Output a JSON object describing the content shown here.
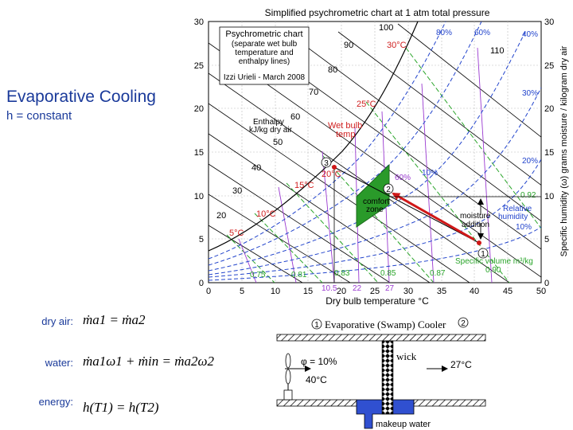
{
  "slide": {
    "title": "Evaporative Cooling",
    "subtitle": "h = constant"
  },
  "chart": {
    "title": "Simplified psychrometric chart at 1 atm total pressure",
    "xlabel": "Dry bulb temperature °C",
    "ylabel": "Specific humidity (ω) grams moisture / kilogram dry air",
    "x_ticks": [
      "0",
      "5",
      "10",
      "15",
      "20",
      "25",
      "30",
      "35",
      "40",
      "45",
      "50"
    ],
    "y_ticks": [
      "0",
      "5",
      "10",
      "15",
      "20",
      "25",
      "30"
    ],
    "legend_lines": [
      "Psychrometric chart",
      "(separate wet bulb",
      "temperature and",
      "enthalpy lines)"
    ],
    "credit": "Izzi Urieli - March 2008",
    "enthalpy_label": [
      "Enthalpy",
      "kJ/kg dry air"
    ],
    "wetbulb_label": [
      "Wet bulb",
      "temp"
    ],
    "comfort_label": [
      "comfort",
      "zone"
    ],
    "moisture_label": [
      "moisture",
      "addition"
    ],
    "rh_label": [
      "Relative",
      "humidity"
    ],
    "sv_label": "Specific volume m³/kg",
    "enthalpy_values": [
      "10",
      "20",
      "30",
      "40",
      "50",
      "60",
      "70",
      "80",
      "90",
      "100",
      "110"
    ],
    "wetbulb_values": [
      "5°C",
      "10°C",
      "15°C",
      "20°C",
      "25°C",
      "30°C"
    ],
    "rh_values": [
      "80%",
      "60%",
      "40%",
      "30%",
      "20%",
      "10%",
      "10%",
      "60%"
    ],
    "sv_values": [
      "0.75",
      "0.81",
      "0.83",
      "0.85",
      "0.87",
      "0.90",
      "0.92"
    ],
    "point_labels": [
      "1",
      "2",
      "3"
    ],
    "bottom_temps": [
      "10.5",
      "22",
      "27"
    ]
  },
  "equations": {
    "dry_air": {
      "label": "dry air:",
      "text": "ṁa1 = ṁa2"
    },
    "water": {
      "label": "water:",
      "text": "ṁa1ω1 + ṁin = ṁa2ω2"
    },
    "energy": {
      "label": "energy:",
      "text": "h(T1) = h(T2)"
    }
  },
  "cooler": {
    "title": "Evaporative (Swamp) Cooler",
    "point1": "1",
    "point2": "2",
    "phi_text": "φ = 10%",
    "temp_in": "40°C",
    "temp_out": "27°C",
    "wick_label": "wick",
    "makeup_label": "makeup water"
  },
  "colors": {
    "line_black": "#000000",
    "wetbulb_green": "#2aa52a",
    "sv_purple": "#9a3ad0",
    "rh_blue": "#2244cc",
    "label_red": "#d02020",
    "comfort_green": "#2a9a2a",
    "arrow_red": "#d01818",
    "water_blue": "#3050d0"
  }
}
